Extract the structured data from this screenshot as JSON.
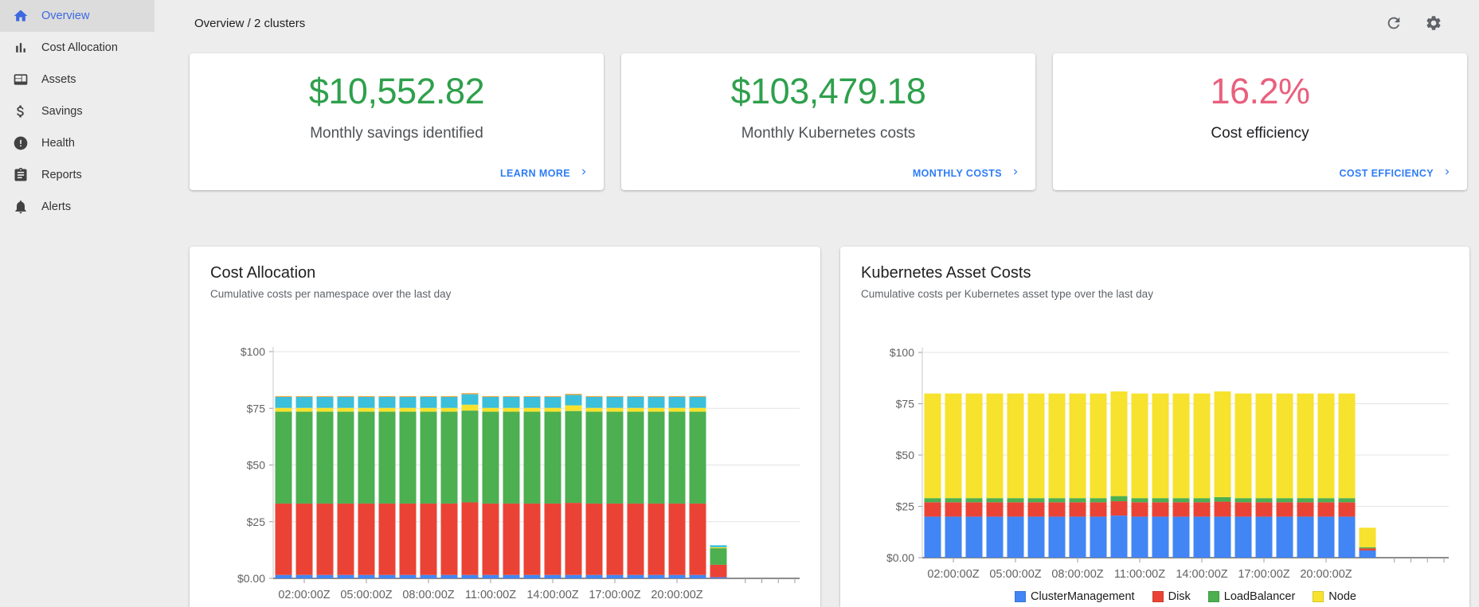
{
  "colors": {
    "accent_blue": "#2e7cf6",
    "sidebar_active_blue": "#3d68e1",
    "positive_green": "#2ea04c",
    "warning_pink": "#e9607e",
    "card_bg": "#ffffff",
    "page_bg": "#ededed"
  },
  "sidebar": {
    "items": [
      {
        "label": "Overview",
        "icon": "home-icon",
        "active": true
      },
      {
        "label": "Cost Allocation",
        "icon": "bar-chart-icon",
        "active": false
      },
      {
        "label": "Assets",
        "icon": "assets-icon",
        "active": false
      },
      {
        "label": "Savings",
        "icon": "dollar-icon",
        "active": false
      },
      {
        "label": "Health",
        "icon": "health-icon",
        "active": false
      },
      {
        "label": "Reports",
        "icon": "reports-icon",
        "active": false
      },
      {
        "label": "Alerts",
        "icon": "bell-icon",
        "active": false
      }
    ]
  },
  "header": {
    "breadcrumb": "Overview / 2 clusters",
    "actions": [
      {
        "icon": "refresh-icon"
      },
      {
        "icon": "gear-icon"
      }
    ]
  },
  "cards": [
    {
      "value": "$10,552.82",
      "value_color": "#2ea04c",
      "label": "Monthly savings identified",
      "label_color": "#4e5154",
      "link": "LEARN MORE"
    },
    {
      "value": "$103,479.18",
      "value_color": "#2ea04c",
      "label": "Monthly Kubernetes costs",
      "label_color": "#4e5154",
      "link": "MONTHLY COSTS"
    },
    {
      "value": "16.2%",
      "value_color": "#e9607e",
      "label": "Cost efficiency",
      "label_color": "#202124",
      "link": "COST EFFICIENCY"
    }
  ],
  "chart_data": [
    {
      "id": "cost-allocation",
      "type": "bar",
      "stacked": true,
      "title": "Cost Allocation",
      "subtitle": "Cumulative costs per namespace over the last day",
      "ylim": [
        0,
        100
      ],
      "grid": true,
      "legend_position": "none",
      "y_ticks": [
        {
          "label": "$100",
          "value": 100
        },
        {
          "label": "$75",
          "value": 75
        },
        {
          "label": "$50",
          "value": 50
        },
        {
          "label": "$25",
          "value": 25
        },
        {
          "label": "$0.00",
          "value": 0
        }
      ],
      "x_labels": [
        "02:00:00Z",
        "05:00:00Z",
        "08:00:00Z",
        "11:00:00Z",
        "14:00:00Z",
        "17:00:00Z",
        "20:00:00Z"
      ],
      "label_slots": [
        2,
        5,
        8,
        11,
        14,
        17,
        20
      ],
      "series": [
        {
          "name": "blue",
          "color": "#4285f4",
          "values": [
            1.5,
            1.5,
            1.5,
            1.5,
            1.5,
            1.5,
            1.5,
            1.5,
            1.5,
            1.5,
            1.5,
            1.5,
            1.5,
            1.5,
            1.5,
            1.5,
            1.5,
            1.5,
            1.5,
            1.5,
            1.5,
            0.5
          ]
        },
        {
          "name": "red",
          "color": "#ea4335",
          "values": [
            31.5,
            31.5,
            31.5,
            31.5,
            31.5,
            31.5,
            31.5,
            31.5,
            31.5,
            32,
            31.5,
            31.5,
            31.5,
            31.5,
            31.8,
            31.5,
            31.5,
            31.5,
            31.5,
            31.5,
            31.5,
            5.5
          ]
        },
        {
          "name": "green",
          "color": "#4caf50",
          "values": [
            40.5,
            40.5,
            40.5,
            40.5,
            40.5,
            40.5,
            40.5,
            40.5,
            40.5,
            40.5,
            40.5,
            40.5,
            40.5,
            40.5,
            40.5,
            40.5,
            40.5,
            40.5,
            40.5,
            40.5,
            40.5,
            7.3
          ]
        },
        {
          "name": "yellow",
          "color": "#f7e22e",
          "values": [
            1.7,
            1.7,
            1.7,
            1.7,
            1.7,
            1.7,
            1.7,
            1.7,
            1.7,
            2.6,
            1.7,
            1.7,
            1.7,
            1.7,
            2.5,
            1.7,
            1.7,
            1.7,
            1.7,
            1.7,
            1.7,
            0.4
          ]
        },
        {
          "name": "cyan",
          "color": "#3bbfdb",
          "values": [
            4.8,
            4.8,
            4.8,
            4.8,
            4.8,
            4.8,
            4.8,
            4.8,
            4.8,
            4.6,
            4.8,
            4.8,
            4.8,
            4.8,
            4.6,
            4.8,
            4.8,
            4.8,
            4.8,
            4.8,
            4.8,
            0.9
          ]
        },
        {
          "name": "orange",
          "color": "#efa944",
          "values": [
            0.4,
            0.4,
            0.4,
            0.4,
            0.4,
            0.4,
            0.4,
            0.4,
            0.4,
            0.5,
            0.4,
            0.4,
            0.4,
            0.4,
            0.5,
            0.4,
            0.4,
            0.4,
            0.4,
            0.4,
            0.4,
            0
          ]
        }
      ]
    },
    {
      "id": "kubernetes-asset-costs",
      "type": "bar",
      "stacked": true,
      "title": "Kubernetes Asset Costs",
      "subtitle": "Cumulative costs per Kubernetes asset type over the last day",
      "ylim": [
        0,
        100
      ],
      "grid": true,
      "legend_position": "bottom",
      "y_ticks": [
        {
          "label": "$100",
          "value": 100
        },
        {
          "label": "$75",
          "value": 75
        },
        {
          "label": "$50",
          "value": 50
        },
        {
          "label": "$25",
          "value": 25
        },
        {
          "label": "$0.00",
          "value": 0
        }
      ],
      "x_labels": [
        "02:00:00Z",
        "05:00:00Z",
        "08:00:00Z",
        "11:00:00Z",
        "14:00:00Z",
        "17:00:00Z",
        "20:00:00Z"
      ],
      "label_slots": [
        2,
        5,
        8,
        11,
        14,
        17,
        20
      ],
      "series": [
        {
          "name": "ClusterManagement",
          "color": "#4285f4",
          "values": [
            20,
            20,
            20,
            20,
            20,
            20,
            20,
            20,
            20,
            20.5,
            20,
            20,
            20,
            20,
            20,
            20,
            20,
            20,
            20,
            20,
            20,
            3.5
          ]
        },
        {
          "name": "Disk",
          "color": "#ea4335",
          "values": [
            7,
            7,
            7,
            7,
            7,
            7,
            7,
            7,
            7,
            7,
            7,
            7,
            7,
            7,
            7.3,
            7,
            7,
            7,
            7,
            7,
            7,
            1
          ]
        },
        {
          "name": "LoadBalancer",
          "color": "#4caf50",
          "values": [
            2,
            2,
            2,
            2,
            2,
            2,
            2,
            2,
            2,
            2.5,
            2,
            2,
            2,
            2,
            2.2,
            2,
            2,
            2,
            2,
            2,
            2,
            0.6
          ]
        },
        {
          "name": "Node",
          "color": "#f7e22e",
          "values": [
            51,
            51,
            51,
            51,
            51,
            51,
            51,
            51,
            51,
            51,
            51,
            51,
            51,
            51,
            51.5,
            51,
            51,
            51,
            51,
            51,
            51,
            9.5
          ]
        }
      ],
      "legend": [
        {
          "label": "ClusterManagement",
          "color": "#4285f4"
        },
        {
          "label": "Disk",
          "color": "#ea4335"
        },
        {
          "label": "LoadBalancer",
          "color": "#4caf50"
        },
        {
          "label": "Node",
          "color": "#f7e22e"
        }
      ]
    }
  ]
}
